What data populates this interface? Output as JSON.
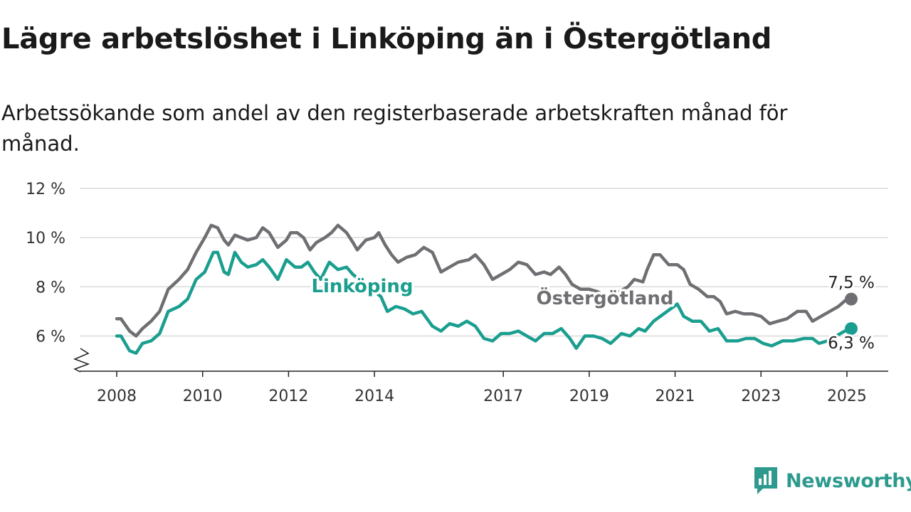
{
  "title": "Lägre arbetslöshet i Linköping än i Östergötland",
  "subtitle": "Arbetssökande som andel av den registerbaserade arbetskraften månad för månad.",
  "brand": {
    "name": "Newsworthy",
    "color": "#2e9a8e",
    "icon": "newsworthy-logo-icon"
  },
  "colors": {
    "linkoping": "#1a9e8f",
    "ostergotland": "#6f6f73",
    "grid": "#d9d9d9",
    "axis": "#222222"
  },
  "chart_data": {
    "type": "line",
    "title": "Lägre arbetslöshet i Linköping än i Östergötland",
    "subtitle": "Arbetssökande som andel av den registerbaserade arbetskraften månad för månad.",
    "xlabel": "",
    "ylabel": "",
    "xlim": [
      2008,
      2025.95
    ],
    "ylim": [
      4.8,
      12
    ],
    "y_ticks": [
      6,
      8,
      10,
      12
    ],
    "y_tick_labels": [
      "6 %",
      "8 %",
      "10 %",
      "12 %"
    ],
    "x_ticks": [
      2008,
      2010,
      2012,
      2014,
      2017,
      2019,
      2021,
      2023,
      2025
    ],
    "x_tick_labels": [
      "2008",
      "2010",
      "2012",
      "2014",
      "2017",
      "2019",
      "2021",
      "2023",
      "2025"
    ],
    "grid": true,
    "legend": "direct labels on lines",
    "axis_break": true,
    "series": [
      {
        "name": "Östergötland",
        "end_label": "7,5 %",
        "points": [
          [
            2008.0,
            6.7
          ],
          [
            2008.1,
            6.7
          ],
          [
            2008.3,
            6.2
          ],
          [
            2008.45,
            6.0
          ],
          [
            2008.6,
            6.3
          ],
          [
            2008.8,
            6.6
          ],
          [
            2009.0,
            7.0
          ],
          [
            2009.2,
            7.9
          ],
          [
            2009.45,
            8.3
          ],
          [
            2009.65,
            8.7
          ],
          [
            2009.85,
            9.4
          ],
          [
            2010.05,
            10.0
          ],
          [
            2010.2,
            10.5
          ],
          [
            2010.35,
            10.4
          ],
          [
            2010.5,
            9.9
          ],
          [
            2010.6,
            9.7
          ],
          [
            2010.75,
            10.1
          ],
          [
            2010.9,
            10.0
          ],
          [
            2011.05,
            9.9
          ],
          [
            2011.25,
            10.0
          ],
          [
            2011.4,
            10.4
          ],
          [
            2011.55,
            10.2
          ],
          [
            2011.75,
            9.6
          ],
          [
            2011.95,
            9.9
          ],
          [
            2012.05,
            10.2
          ],
          [
            2012.2,
            10.2
          ],
          [
            2012.35,
            10.0
          ],
          [
            2012.5,
            9.5
          ],
          [
            2012.65,
            9.8
          ],
          [
            2012.85,
            10.0
          ],
          [
            2013.0,
            10.2
          ],
          [
            2013.15,
            10.5
          ],
          [
            2013.35,
            10.2
          ],
          [
            2013.5,
            9.8
          ],
          [
            2013.6,
            9.5
          ],
          [
            2013.8,
            9.9
          ],
          [
            2014.0,
            10.0
          ],
          [
            2014.1,
            10.2
          ],
          [
            2014.25,
            9.7
          ],
          [
            2014.4,
            9.3
          ],
          [
            2014.55,
            9.0
          ],
          [
            2014.75,
            9.2
          ],
          [
            2014.95,
            9.3
          ],
          [
            2015.15,
            9.6
          ],
          [
            2015.35,
            9.4
          ],
          [
            2015.55,
            8.6
          ],
          [
            2015.75,
            8.8
          ],
          [
            2015.95,
            9.0
          ],
          [
            2016.2,
            9.1
          ],
          [
            2016.35,
            9.3
          ],
          [
            2016.55,
            8.9
          ],
          [
            2016.75,
            8.3
          ],
          [
            2016.95,
            8.5
          ],
          [
            2017.15,
            8.7
          ],
          [
            2017.35,
            9.0
          ],
          [
            2017.55,
            8.9
          ],
          [
            2017.75,
            8.5
          ],
          [
            2017.95,
            8.6
          ],
          [
            2018.1,
            8.5
          ],
          [
            2018.3,
            8.8
          ],
          [
            2018.45,
            8.5
          ],
          [
            2018.6,
            8.1
          ],
          [
            2018.8,
            7.9
          ],
          [
            2019.0,
            7.9
          ],
          [
            2019.2,
            7.8
          ],
          [
            2019.45,
            7.5
          ],
          [
            2019.7,
            7.8
          ],
          [
            2019.9,
            8.0
          ],
          [
            2020.05,
            8.3
          ],
          [
            2020.25,
            8.2
          ],
          [
            2020.35,
            8.7
          ],
          [
            2020.5,
            9.3
          ],
          [
            2020.65,
            9.3
          ],
          [
            2020.85,
            8.9
          ],
          [
            2021.05,
            8.9
          ],
          [
            2021.2,
            8.7
          ],
          [
            2021.35,
            8.1
          ],
          [
            2021.55,
            7.9
          ],
          [
            2021.75,
            7.6
          ],
          [
            2021.9,
            7.6
          ],
          [
            2022.05,
            7.4
          ],
          [
            2022.2,
            6.9
          ],
          [
            2022.4,
            7.0
          ],
          [
            2022.6,
            6.9
          ],
          [
            2022.8,
            6.9
          ],
          [
            2023.0,
            6.8
          ],
          [
            2023.2,
            6.5
          ],
          [
            2023.4,
            6.6
          ],
          [
            2023.6,
            6.7
          ],
          [
            2023.85,
            7.0
          ],
          [
            2024.05,
            7.0
          ],
          [
            2024.2,
            6.6
          ],
          [
            2024.4,
            6.8
          ],
          [
            2024.6,
            7.0
          ],
          [
            2024.8,
            7.2
          ],
          [
            2025.0,
            7.5
          ],
          [
            2025.1,
            7.5
          ]
        ]
      },
      {
        "name": "Linköping",
        "end_label": "6,3 %",
        "points": [
          [
            2008.0,
            6.0
          ],
          [
            2008.1,
            6.0
          ],
          [
            2008.3,
            5.4
          ],
          [
            2008.45,
            5.3
          ],
          [
            2008.6,
            5.7
          ],
          [
            2008.8,
            5.8
          ],
          [
            2009.0,
            6.1
          ],
          [
            2009.2,
            7.0
          ],
          [
            2009.45,
            7.2
          ],
          [
            2009.65,
            7.5
          ],
          [
            2009.85,
            8.3
          ],
          [
            2010.05,
            8.6
          ],
          [
            2010.25,
            9.4
          ],
          [
            2010.35,
            9.4
          ],
          [
            2010.5,
            8.6
          ],
          [
            2010.6,
            8.5
          ],
          [
            2010.75,
            9.4
          ],
          [
            2010.9,
            9.0
          ],
          [
            2011.05,
            8.8
          ],
          [
            2011.25,
            8.9
          ],
          [
            2011.4,
            9.1
          ],
          [
            2011.55,
            8.8
          ],
          [
            2011.75,
            8.3
          ],
          [
            2011.95,
            9.1
          ],
          [
            2012.15,
            8.8
          ],
          [
            2012.3,
            8.8
          ],
          [
            2012.45,
            9.0
          ],
          [
            2012.6,
            8.6
          ],
          [
            2012.75,
            8.3
          ],
          [
            2012.95,
            9.0
          ],
          [
            2013.15,
            8.7
          ],
          [
            2013.35,
            8.8
          ],
          [
            2013.5,
            8.5
          ],
          [
            2014.15,
            7.6
          ],
          [
            2014.3,
            7.0
          ],
          [
            2014.5,
            7.2
          ],
          [
            2014.7,
            7.1
          ],
          [
            2014.9,
            6.9
          ],
          [
            2015.1,
            7.0
          ],
          [
            2015.35,
            6.4
          ],
          [
            2015.55,
            6.2
          ],
          [
            2015.75,
            6.5
          ],
          [
            2015.95,
            6.4
          ],
          [
            2016.15,
            6.6
          ],
          [
            2016.35,
            6.4
          ],
          [
            2016.55,
            5.9
          ],
          [
            2016.75,
            5.8
          ],
          [
            2016.95,
            6.1
          ],
          [
            2017.15,
            6.1
          ],
          [
            2017.35,
            6.2
          ],
          [
            2017.55,
            6.0
          ],
          [
            2017.75,
            5.8
          ],
          [
            2017.95,
            6.1
          ],
          [
            2018.15,
            6.1
          ],
          [
            2018.35,
            6.3
          ],
          [
            2018.55,
            5.9
          ],
          [
            2018.7,
            5.5
          ],
          [
            2018.9,
            6.0
          ],
          [
            2019.1,
            6.0
          ],
          [
            2019.3,
            5.9
          ],
          [
            2019.5,
            5.7
          ],
          [
            2019.75,
            6.1
          ],
          [
            2019.95,
            6.0
          ],
          [
            2020.15,
            6.3
          ],
          [
            2020.3,
            6.2
          ],
          [
            2020.5,
            6.6
          ],
          [
            2021.05,
            7.3
          ],
          [
            2021.2,
            6.8
          ],
          [
            2021.4,
            6.6
          ],
          [
            2021.6,
            6.6
          ],
          [
            2021.8,
            6.2
          ],
          [
            2022.0,
            6.3
          ],
          [
            2022.2,
            5.8
          ],
          [
            2022.45,
            5.8
          ],
          [
            2022.65,
            5.9
          ],
          [
            2022.85,
            5.9
          ],
          [
            2023.05,
            5.7
          ],
          [
            2023.25,
            5.6
          ],
          [
            2023.5,
            5.8
          ],
          [
            2023.75,
            5.8
          ],
          [
            2024.0,
            5.9
          ],
          [
            2024.2,
            5.9
          ],
          [
            2024.35,
            5.7
          ],
          [
            2024.55,
            5.8
          ],
          [
            2024.75,
            6.0
          ],
          [
            2024.95,
            6.2
          ],
          [
            2025.1,
            6.3
          ]
        ]
      }
    ]
  }
}
